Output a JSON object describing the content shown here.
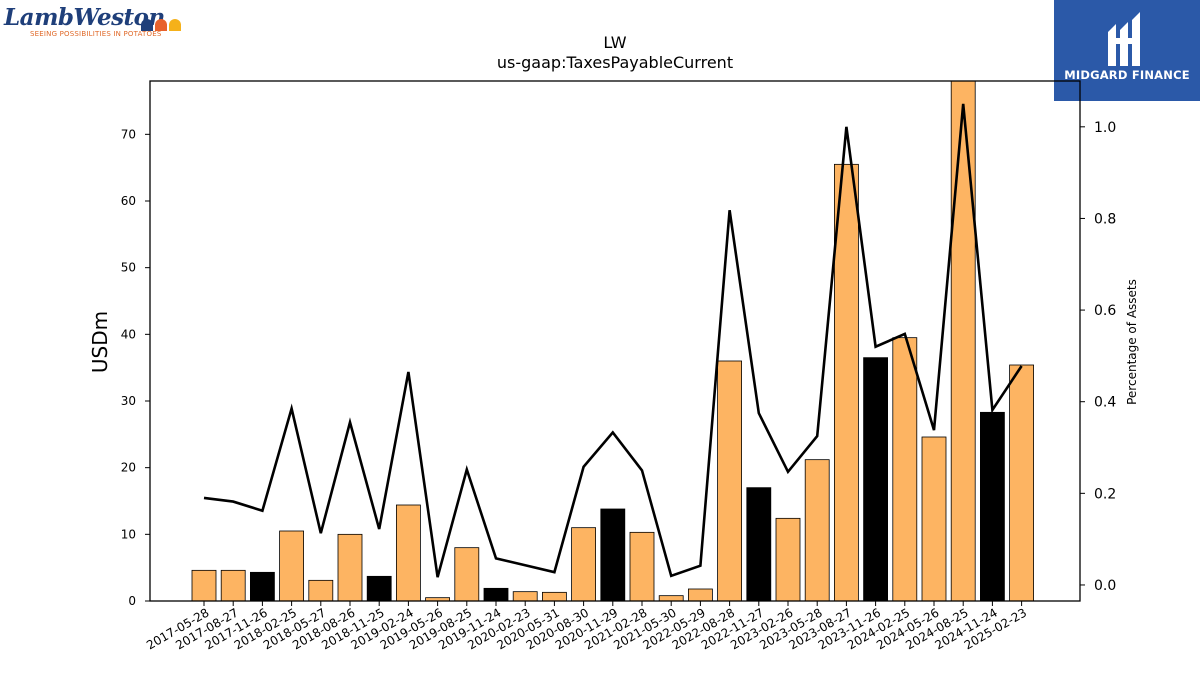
{
  "brand": {
    "name": "LambWeston",
    "tagline": "SEEING POSSIBILITIES IN POTATOES",
    "dot_colors": [
      "#1f3f7a",
      "#e8622c",
      "#f5b11a"
    ]
  },
  "publisher": {
    "name": "MIDGARD FINANCE",
    "color": "#2b59a8"
  },
  "chart_data": {
    "type": "bar",
    "title": "LW",
    "subtitle": "us-gaap:TaxesPayableCurrent",
    "ylabel": "USDm",
    "y2label": "Percentage of Assets",
    "ylim": [
      0,
      78
    ],
    "y2lim": [
      -0.035,
      1.1
    ],
    "yticks": [
      0,
      10,
      20,
      30,
      40,
      50,
      60,
      70
    ],
    "y2ticks": [
      "0.0",
      "0.2",
      "0.4",
      "0.6",
      "0.8",
      "1.0"
    ],
    "grid": false,
    "colors": {
      "bar": "#fdb462",
      "highlight": "#000000",
      "line": "#000000"
    },
    "categories": [
      "2017-05-28",
      "2017-08-27",
      "2017-11-26",
      "2018-02-25",
      "2018-05-27",
      "2018-08-26",
      "2018-11-25",
      "2019-02-24",
      "2019-05-26",
      "2019-08-25",
      "2019-11-24",
      "2020-02-23",
      "2020-05-31",
      "2020-08-30",
      "2020-11-29",
      "2021-02-28",
      "2021-05-30",
      "2022-05-29",
      "2022-08-28",
      "2022-11-27",
      "2023-02-26",
      "2023-05-28",
      "2023-08-27",
      "2023-11-26",
      "2024-02-25",
      "2024-05-26",
      "2024-08-25",
      "2024-11-24",
      "2025-02-23"
    ],
    "series": [
      {
        "type": "bar",
        "values": [
          4.6,
          4.6,
          4.3,
          10.5,
          3.1,
          10.0,
          3.7,
          14.4,
          0.5,
          8.0,
          1.9,
          1.4,
          1.3,
          11.0,
          13.8,
          10.3,
          0.8,
          1.8,
          36.0,
          17.0,
          12.4,
          21.2,
          65.5,
          36.5,
          39.5,
          24.6,
          78.5,
          28.3,
          35.4
        ],
        "highlight": [
          false,
          false,
          true,
          false,
          false,
          false,
          true,
          false,
          false,
          false,
          true,
          false,
          false,
          false,
          true,
          false,
          false,
          false,
          false,
          true,
          false,
          false,
          false,
          true,
          false,
          false,
          false,
          true,
          false
        ]
      },
      {
        "type": "line",
        "axis": "right",
        "values": [
          0.19,
          0.182,
          0.162,
          0.385,
          0.113,
          0.355,
          0.122,
          0.465,
          0.017,
          0.252,
          0.058,
          0.043,
          0.028,
          0.258,
          0.333,
          0.25,
          0.02,
          0.042,
          0.818,
          0.375,
          0.247,
          0.325,
          1.0,
          0.52,
          0.548,
          0.338,
          1.05,
          0.382,
          0.478
        ]
      }
    ]
  }
}
